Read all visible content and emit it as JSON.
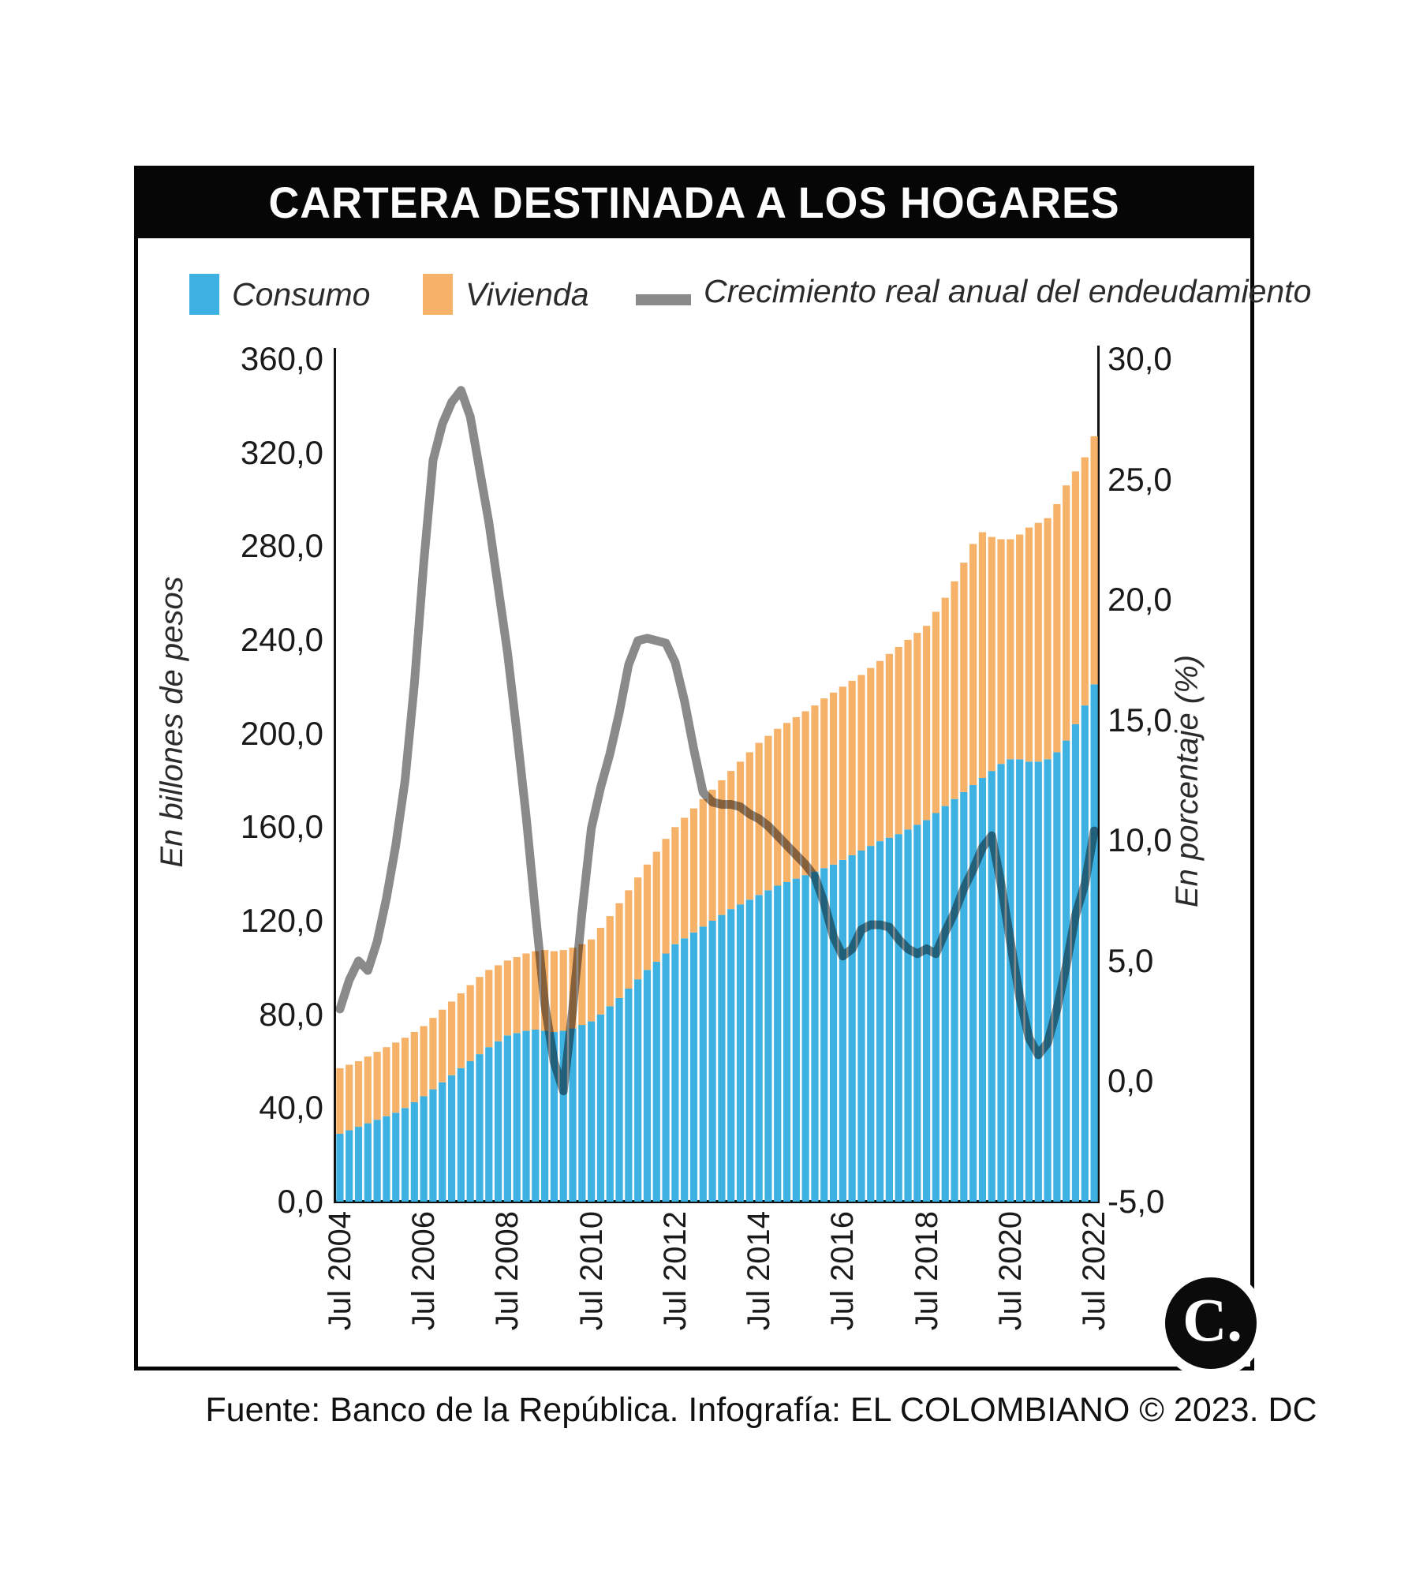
{
  "header": {
    "title": "CARTERA DESTINADA A LOS HOGARES"
  },
  "legend": {
    "items": [
      {
        "label": "Consumo",
        "marker": "square",
        "color": "#3DB2E2"
      },
      {
        "label": "Vivienda",
        "marker": "square",
        "color": "#F7B26A"
      },
      {
        "label": "Crecimiento real anual del endeudamiento",
        "marker": "line",
        "color": "#8A8A8A"
      }
    ]
  },
  "footer": {
    "source": "Fuente: Banco de la República. Infografía: EL COLOMBIANO © 2023. DC"
  },
  "logo": {
    "text": "C."
  },
  "chart_data": {
    "type": "stacked-bar+line",
    "title": "CARTERA DESTINADA A LOS HOGARES",
    "grid": false,
    "legend_position": "top",
    "n_points": 82,
    "x_tick_every": 9,
    "x_tick_labels": [
      "Jul 2004",
      "Jul 2006",
      "Jul 2008",
      "Jul 2010",
      "Jul 2012",
      "Jul 2014",
      "Jul 2016",
      "Jul 2018",
      "Jul 2020",
      "Jul 2022"
    ],
    "left_axis": {
      "label": "En billones de pesos",
      "min": 0,
      "max": 360,
      "tick_step": 40,
      "tick_labels": [
        "0,0",
        "40,0",
        "80,0",
        "120,0",
        "160,0",
        "200,0",
        "240,0",
        "280,0",
        "320,0",
        "360,0"
      ]
    },
    "right_axis": {
      "label": "En porcentaje (%)",
      "min": -5,
      "max": 30,
      "tick_step": 5,
      "tick_labels": [
        "-5,0",
        "0,0",
        "5,0",
        "10,0",
        "15,0",
        "20,0",
        "25,0",
        "30,0"
      ]
    },
    "series": [
      {
        "name": "Consumo",
        "type": "bar",
        "axis": "left",
        "color": "#3DB2E2",
        "values": [
          29,
          30.5,
          32,
          33.5,
          35,
          36.5,
          38,
          40,
          42.5,
          45,
          48,
          51,
          54,
          57,
          60,
          63,
          66,
          68.5,
          71,
          72,
          73,
          73.5,
          73,
          72.5,
          73,
          74,
          75.5,
          77,
          80,
          83.5,
          87,
          91,
          95,
          99,
          102.5,
          106,
          110,
          112.5,
          115,
          117.5,
          120,
          122.5,
          125,
          127,
          129,
          131,
          133,
          135,
          136.5,
          138,
          139.5,
          141,
          142.5,
          144,
          146,
          148,
          150,
          152,
          154,
          155.5,
          157,
          159,
          161,
          163,
          166,
          169,
          172,
          175,
          178,
          181,
          184,
          187,
          189,
          189,
          188,
          188,
          189,
          192,
          197,
          204,
          212,
          221
        ]
      },
      {
        "name": "Vivienda",
        "type": "bar",
        "axis": "left",
        "stacked_on": "Consumo",
        "color": "#F7B26A",
        "values": [
          28,
          28,
          28,
          28.5,
          29,
          29.5,
          30,
          30,
          30,
          30,
          30.5,
          31,
          31.5,
          32,
          32.5,
          33,
          33,
          32.5,
          32,
          32.5,
          33,
          33.5,
          34.5,
          34.5,
          34.5,
          34.5,
          34.5,
          35,
          37,
          38.5,
          40.5,
          42,
          43.5,
          45,
          47,
          49,
          50,
          51.5,
          53,
          54.5,
          56,
          57.5,
          59,
          61,
          63,
          65,
          66,
          67,
          68,
          69,
          70,
          71,
          72.5,
          73.5,
          74,
          74.5,
          75,
          76,
          77,
          78.5,
          80,
          81,
          82,
          83,
          86,
          89,
          93,
          98,
          103,
          105,
          100,
          96,
          94,
          96,
          100,
          102,
          103,
          106,
          109,
          108,
          106,
          106
        ]
      },
      {
        "name": "Crecimiento real anual del endeudamiento",
        "type": "line",
        "axis": "right",
        "color": "#8A8A8A",
        "values": [
          3.0,
          4.2,
          5.0,
          4.6,
          5.8,
          7.6,
          9.8,
          12.5,
          16.5,
          21.5,
          25.8,
          27.3,
          28.2,
          28.7,
          27.6,
          25.4,
          23.2,
          20.5,
          17.8,
          14.5,
          11.0,
          7.0,
          3.2,
          0.8,
          -0.4,
          3.0,
          7.0,
          10.5,
          12.2,
          13.6,
          15.3,
          17.3,
          18.3,
          18.4,
          18.3,
          18.2,
          17.4,
          15.8,
          13.8,
          12.0,
          11.6,
          11.5,
          11.5,
          11.4,
          11.1,
          10.9,
          10.6,
          10.2,
          9.8,
          9.4,
          9.0,
          8.5,
          7.4,
          6.0,
          5.2,
          5.5,
          6.3,
          6.5,
          6.5,
          6.4,
          5.9,
          5.5,
          5.3,
          5.5,
          5.3,
          6.2,
          7.0,
          8.0,
          8.8,
          9.7,
          10.2,
          8.2,
          5.8,
          3.5,
          1.8,
          1.1,
          1.6,
          3.0,
          4.8,
          6.9,
          8.2,
          10.4
        ]
      }
    ]
  }
}
